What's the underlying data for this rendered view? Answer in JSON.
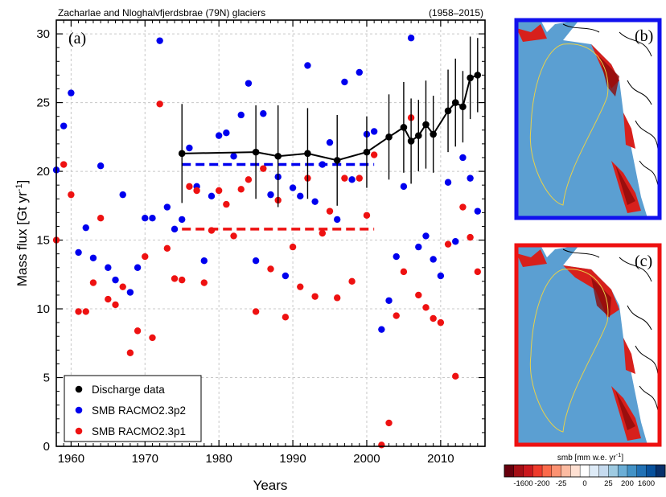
{
  "header": {
    "title": "Zacharlae and Nloghalvfjerdsbrae (79N) glaciers",
    "period": "(1958–2015)"
  },
  "chart_data": [
    {
      "type": "scatter",
      "panel_label": "(a)",
      "xlabel": "Years",
      "ylabel": "Mass flux [Gt yr",
      "ylabel_sup": "-1",
      "ylabel_close": "]",
      "xlim": [
        1958,
        2016
      ],
      "ylim": [
        0,
        31
      ],
      "xticks": [
        1960,
        1970,
        1980,
        1990,
        2000,
        2010
      ],
      "yticks": [
        0,
        5,
        10,
        15,
        20,
        25,
        30
      ],
      "grid": true,
      "legend_position": "bottom-left",
      "colors": {
        "discharge": "#000000",
        "p2": "#0000ee",
        "p1": "#ee1111"
      },
      "series": [
        {
          "name": "Discharge data",
          "style": "line-markers-errorbars",
          "x": [
            1975,
            1985,
            1988,
            1992,
            1996,
            2000,
            2003,
            2005,
            2006,
            2007,
            2008,
            2009,
            2011,
            2012,
            2013,
            2014,
            2015
          ],
          "y": [
            21.3,
            21.4,
            21.1,
            21.3,
            20.8,
            21.4,
            22.5,
            23.2,
            22.2,
            22.6,
            23.4,
            22.7,
            24.4,
            25.0,
            24.7,
            26.8,
            27.0
          ],
          "err": [
            3.6,
            3.4,
            3.7,
            3.3,
            3.3,
            2.6,
            3.1,
            3.3,
            3.1,
            2.6,
            3.2,
            2.8,
            3.0,
            3.2,
            2.6,
            3.0,
            2.7
          ]
        },
        {
          "name": "SMB RACMO2.3p2",
          "style": "markers",
          "x": [
            1958,
            1959,
            1960,
            1961,
            1962,
            1963,
            1964,
            1965,
            1966,
            1967,
            1968,
            1969,
            1970,
            1971,
            1972,
            1973,
            1974,
            1975,
            1976,
            1977,
            1978,
            1979,
            1980,
            1981,
            1982,
            1983,
            1984,
            1985,
            1986,
            1987,
            1988,
            1989,
            1990,
            1991,
            1992,
            1993,
            1994,
            1995,
            1996,
            1997,
            1998,
            1999,
            2000,
            2001,
            2002,
            2003,
            2004,
            2005,
            2006,
            2007,
            2008,
            2009,
            2010,
            2011,
            2012,
            2013,
            2014,
            2015
          ],
          "y": [
            20.1,
            23.3,
            25.7,
            14.1,
            15.9,
            13.7,
            20.4,
            13.0,
            12.1,
            18.3,
            11.2,
            13.0,
            16.6,
            16.6,
            29.5,
            17.4,
            15.8,
            16.5,
            21.7,
            18.9,
            13.5,
            18.2,
            22.6,
            22.8,
            21.1,
            24.1,
            26.4,
            13.5,
            24.2,
            18.3,
            19.6,
            12.4,
            18.8,
            18.2,
            27.7,
            17.8,
            20.5,
            22.1,
            16.5,
            26.5,
            19.4,
            27.2,
            22.7,
            22.9,
            8.5,
            10.6,
            13.8,
            18.9,
            29.7,
            14.5,
            15.3,
            13.6,
            12.4,
            19.2,
            14.9,
            21.0,
            19.5,
            17.1
          ]
        },
        {
          "name": "SMB RACMO2.3p1",
          "style": "markers",
          "x": [
            1958,
            1959,
            1960,
            1961,
            1962,
            1963,
            1964,
            1965,
            1966,
            1967,
            1968,
            1969,
            1970,
            1971,
            1972,
            1973,
            1974,
            1975,
            1976,
            1977,
            1978,
            1979,
            1980,
            1981,
            1982,
            1983,
            1984,
            1985,
            1986,
            1987,
            1988,
            1989,
            1990,
            1991,
            1992,
            1993,
            1994,
            1995,
            1996,
            1997,
            1998,
            1999,
            2000,
            2001,
            2002,
            2003,
            2004,
            2005,
            2006,
            2007,
            2008,
            2009,
            2010,
            2011,
            2012,
            2013,
            2014,
            2015
          ],
          "y": [
            15.0,
            20.5,
            18.3,
            9.8,
            9.8,
            11.9,
            16.6,
            10.7,
            10.3,
            11.6,
            6.8,
            8.4,
            13.8,
            7.9,
            24.9,
            14.4,
            12.2,
            12.1,
            18.9,
            18.6,
            11.9,
            15.7,
            18.6,
            17.6,
            15.3,
            18.7,
            19.4,
            9.8,
            20.2,
            12.9,
            17.9,
            9.4,
            14.5,
            11.6,
            19.5,
            10.9,
            15.5,
            17.1,
            10.8,
            19.5,
            12.0,
            19.5,
            16.8,
            21.2,
            0.1,
            1.7,
            9.5,
            12.7,
            23.9,
            11.0,
            10.1,
            9.3,
            9.0,
            14.7,
            5.1,
            17.4,
            15.2,
            12.7
          ]
        }
      ],
      "mean_lines": [
        {
          "series": "SMB RACMO2.3p2",
          "x0": 1975,
          "x1": 2001,
          "y": 20.5
        },
        {
          "series": "SMB RACMO2.3p1",
          "x0": 1975,
          "x1": 2001,
          "y": 15.8
        }
      ]
    }
  ],
  "panel_b": {
    "label": "(b)",
    "border_color": "#1111ee"
  },
  "panel_c": {
    "label": "(c)",
    "border_color": "#ee1111"
  },
  "colorbar": {
    "title": "smb [mm w.e. yr",
    "title_sup": "-1",
    "title_close": "]",
    "tick_labels": [
      "-1600",
      "-200",
      "-25",
      "0",
      "25",
      "200",
      "1600"
    ],
    "colors": [
      "#67000d",
      "#a50f15",
      "#cb181d",
      "#ef3b2c",
      "#fb6a4a",
      "#fc9272",
      "#fcbba1",
      "#fee0d2",
      "#ffffff",
      "#deebf7",
      "#c6dbef",
      "#9ecae1",
      "#6baed6",
      "#4292c6",
      "#2171b5",
      "#08519c",
      "#08306b"
    ]
  }
}
